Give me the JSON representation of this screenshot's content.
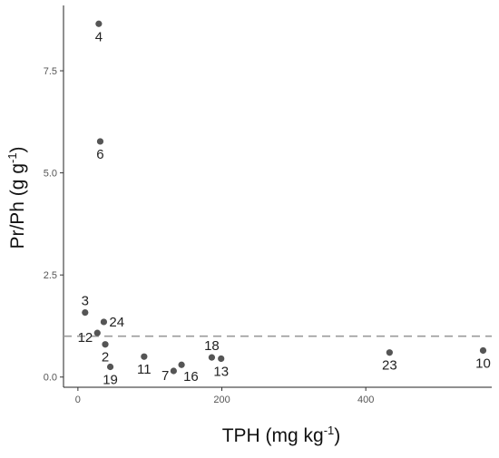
{
  "chart_data": {
    "type": "scatter",
    "xlabel": {
      "text": "TPH (mg kg",
      "sup": "-1",
      "close": ")"
    },
    "ylabel": {
      "text": "Pr/Ph (g g",
      "sup": "-1",
      "close": ")"
    },
    "xlim": [
      -20,
      575
    ],
    "ylim": [
      -0.25,
      9.1
    ],
    "x_ticks": [
      0,
      200,
      400
    ],
    "x_tick_labels": [
      "0",
      "200",
      "400"
    ],
    "y_ticks": [
      0.0,
      2.5,
      5.0,
      7.5
    ],
    "y_tick_labels": [
      "0.0",
      "2.5",
      "5.0",
      "7.5"
    ],
    "reference_line": {
      "y": 1.0,
      "style": "dashed",
      "color": "#9a9a9a"
    },
    "grid": false,
    "point_color": "#555555",
    "points": [
      {
        "label": "4",
        "x": 29,
        "y": 8.65,
        "label_pos": "below"
      },
      {
        "label": "6",
        "x": 31,
        "y": 5.77,
        "label_pos": "below"
      },
      {
        "label": "3",
        "x": 10,
        "y": 1.58,
        "label_pos": "above"
      },
      {
        "label": "24",
        "x": 36,
        "y": 1.35,
        "label_pos": "right"
      },
      {
        "label": "12",
        "x": 27,
        "y": 1.08,
        "label_pos": "left"
      },
      {
        "label": "2",
        "x": 38,
        "y": 0.8,
        "label_pos": "below"
      },
      {
        "label": "19",
        "x": 45,
        "y": 0.25,
        "label_pos": "below"
      },
      {
        "label": "11",
        "x": 92,
        "y": 0.5,
        "label_pos": "below"
      },
      {
        "label": "7",
        "x": 133,
        "y": 0.15,
        "label_pos": "left"
      },
      {
        "label": "16",
        "x": 144,
        "y": 0.3,
        "label_pos": "below-right"
      },
      {
        "label": "18",
        "x": 186,
        "y": 0.48,
        "label_pos": "above"
      },
      {
        "label": "13",
        "x": 199,
        "y": 0.45,
        "label_pos": "below"
      },
      {
        "label": "23",
        "x": 433,
        "y": 0.6,
        "label_pos": "below"
      },
      {
        "label": "10",
        "x": 563,
        "y": 0.65,
        "label_pos": "below"
      }
    ]
  }
}
